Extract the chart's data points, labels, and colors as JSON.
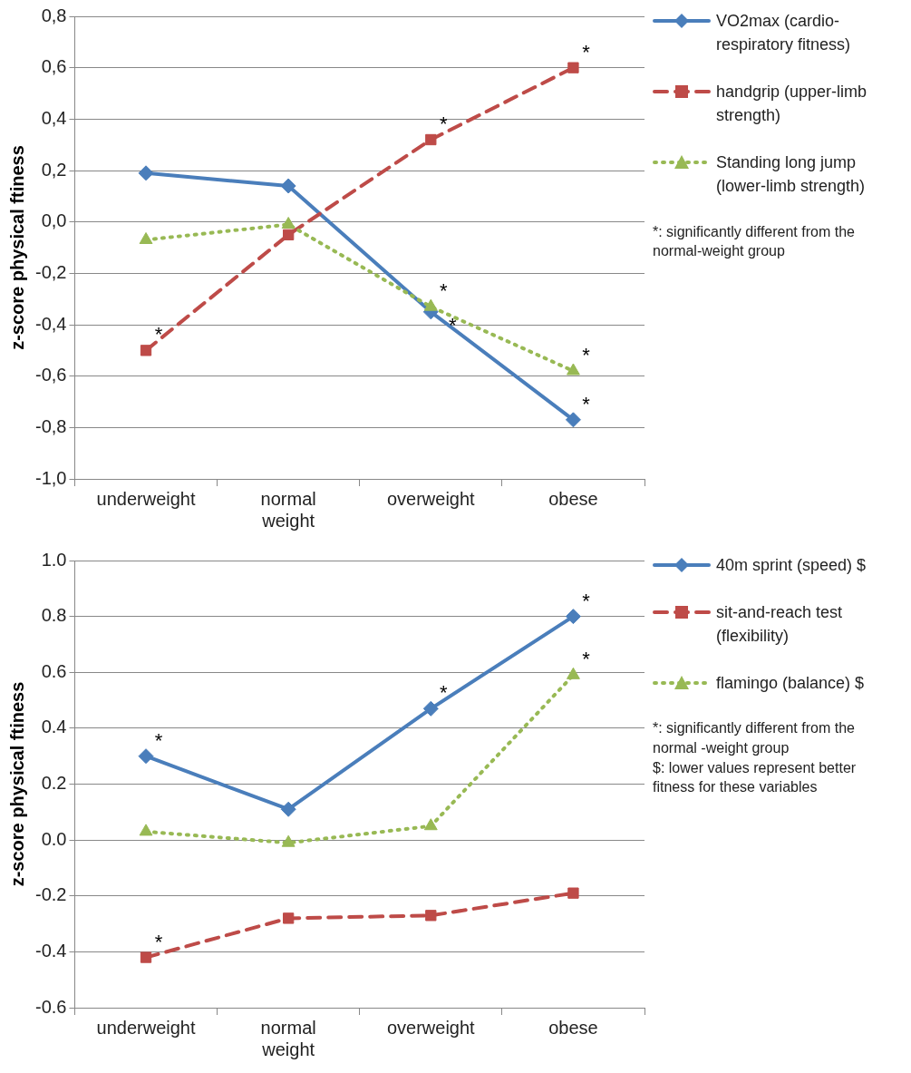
{
  "chart_data": [
    {
      "type": "line",
      "ylabel": "z-score physical ftiness",
      "categories": [
        "underweight",
        "normal\nweight",
        "overweight",
        "obese"
      ],
      "series": [
        {
          "name": "VO2max (cardio-respiratory fitness)",
          "color": "#4a7ebb",
          "marker": "diamond",
          "line_style": "solid",
          "values": [
            0.19,
            0.14,
            -0.35,
            -0.77
          ]
        },
        {
          "name": "handgrip (upper-limb strength)",
          "color": "#be4b48",
          "marker": "square",
          "line_style": "dashed",
          "values": [
            -0.5,
            -0.05,
            0.32,
            0.6
          ]
        },
        {
          "name": "Standing long jump (lower-limb strength)",
          "color": "#98b954",
          "marker": "triangle",
          "line_style": "dotted",
          "values": [
            -0.07,
            -0.01,
            -0.33,
            -0.58
          ]
        }
      ],
      "ylim": [
        -1.0,
        0.8
      ],
      "yticks": [
        {
          "value": -1.0,
          "label": "-1,0"
        },
        {
          "value": -0.8,
          "label": "-0,8"
        },
        {
          "value": -0.6,
          "label": "-0,6"
        },
        {
          "value": -0.4,
          "label": "-0,4"
        },
        {
          "value": -0.2,
          "label": "-0,2"
        },
        {
          "value": 0,
          "label": "0,0"
        },
        {
          "value": 0.2,
          "label": "0,2"
        },
        {
          "value": 0.4,
          "label": "0,4"
        },
        {
          "value": 0.6,
          "label": "0,6"
        },
        {
          "value": 0.8,
          "label": "0,8"
        }
      ],
      "grid": "y",
      "legend": "right",
      "annotations": [
        {
          "text": "*",
          "x": "underweight",
          "y": -0.5
        },
        {
          "text": "*",
          "x": "overweight",
          "y": 0.32
        },
        {
          "text": "*",
          "x": "obese",
          "y": 0.6
        },
        {
          "text": "*",
          "x": "overweight",
          "y": -0.33
        },
        {
          "text": "*",
          "x": "overweight",
          "y": -0.35
        },
        {
          "text": "*",
          "x": "obese",
          "y": -0.58
        },
        {
          "text": "*",
          "x": "obese",
          "y": -0.77
        },
        "*: significantly different from the normal-weight group"
      ]
    },
    {
      "type": "line",
      "ylabel": "z-score physical ftiness",
      "categories": [
        "underweight",
        "normal\nweight",
        "overweight",
        "obese"
      ],
      "series": [
        {
          "name": "40m sprint (speed) $",
          "color": "#4a7ebb",
          "marker": "diamond",
          "line_style": "solid",
          "values": [
            0.3,
            0.11,
            0.47,
            0.8
          ]
        },
        {
          "name": "sit-and-reach test (flexibility)",
          "color": "#be4b48",
          "marker": "square",
          "line_style": "dashed",
          "values": [
            -0.42,
            -0.28,
            -0.27,
            -0.19
          ]
        },
        {
          "name": "flamingo (balance) $",
          "color": "#98b954",
          "marker": "triangle",
          "line_style": "dotted",
          "values": [
            0.03,
            -0.01,
            0.05,
            0.59
          ]
        }
      ],
      "ylim": [
        -0.6,
        1.0
      ],
      "yticks": [
        {
          "value": -0.6,
          "label": "-0.6"
        },
        {
          "value": -0.4,
          "label": "-0.4"
        },
        {
          "value": -0.2,
          "label": "-0.2"
        },
        {
          "value": 0,
          "label": "0.0"
        },
        {
          "value": 0.2,
          "label": "0.2"
        },
        {
          "value": 0.4,
          "label": "0.4"
        },
        {
          "value": 0.6,
          "label": "0.6"
        },
        {
          "value": 0.8,
          "label": "0.8"
        },
        {
          "value": 1.0,
          "label": "1.0"
        }
      ],
      "grid": "y",
      "legend": "right",
      "annotations": [
        {
          "text": "*",
          "x": "underweight",
          "y": 0.3
        },
        {
          "text": "*",
          "x": "overweight",
          "y": 0.47
        },
        {
          "text": "*",
          "x": "obese",
          "y": 0.8
        },
        {
          "text": "*",
          "x": "obese",
          "y": 0.59
        },
        {
          "text": "*",
          "x": "underweight",
          "y": -0.42
        },
        "*: significantly different from the normal -weight group",
        "$: lower values represent better fitness for these variables"
      ]
    }
  ]
}
